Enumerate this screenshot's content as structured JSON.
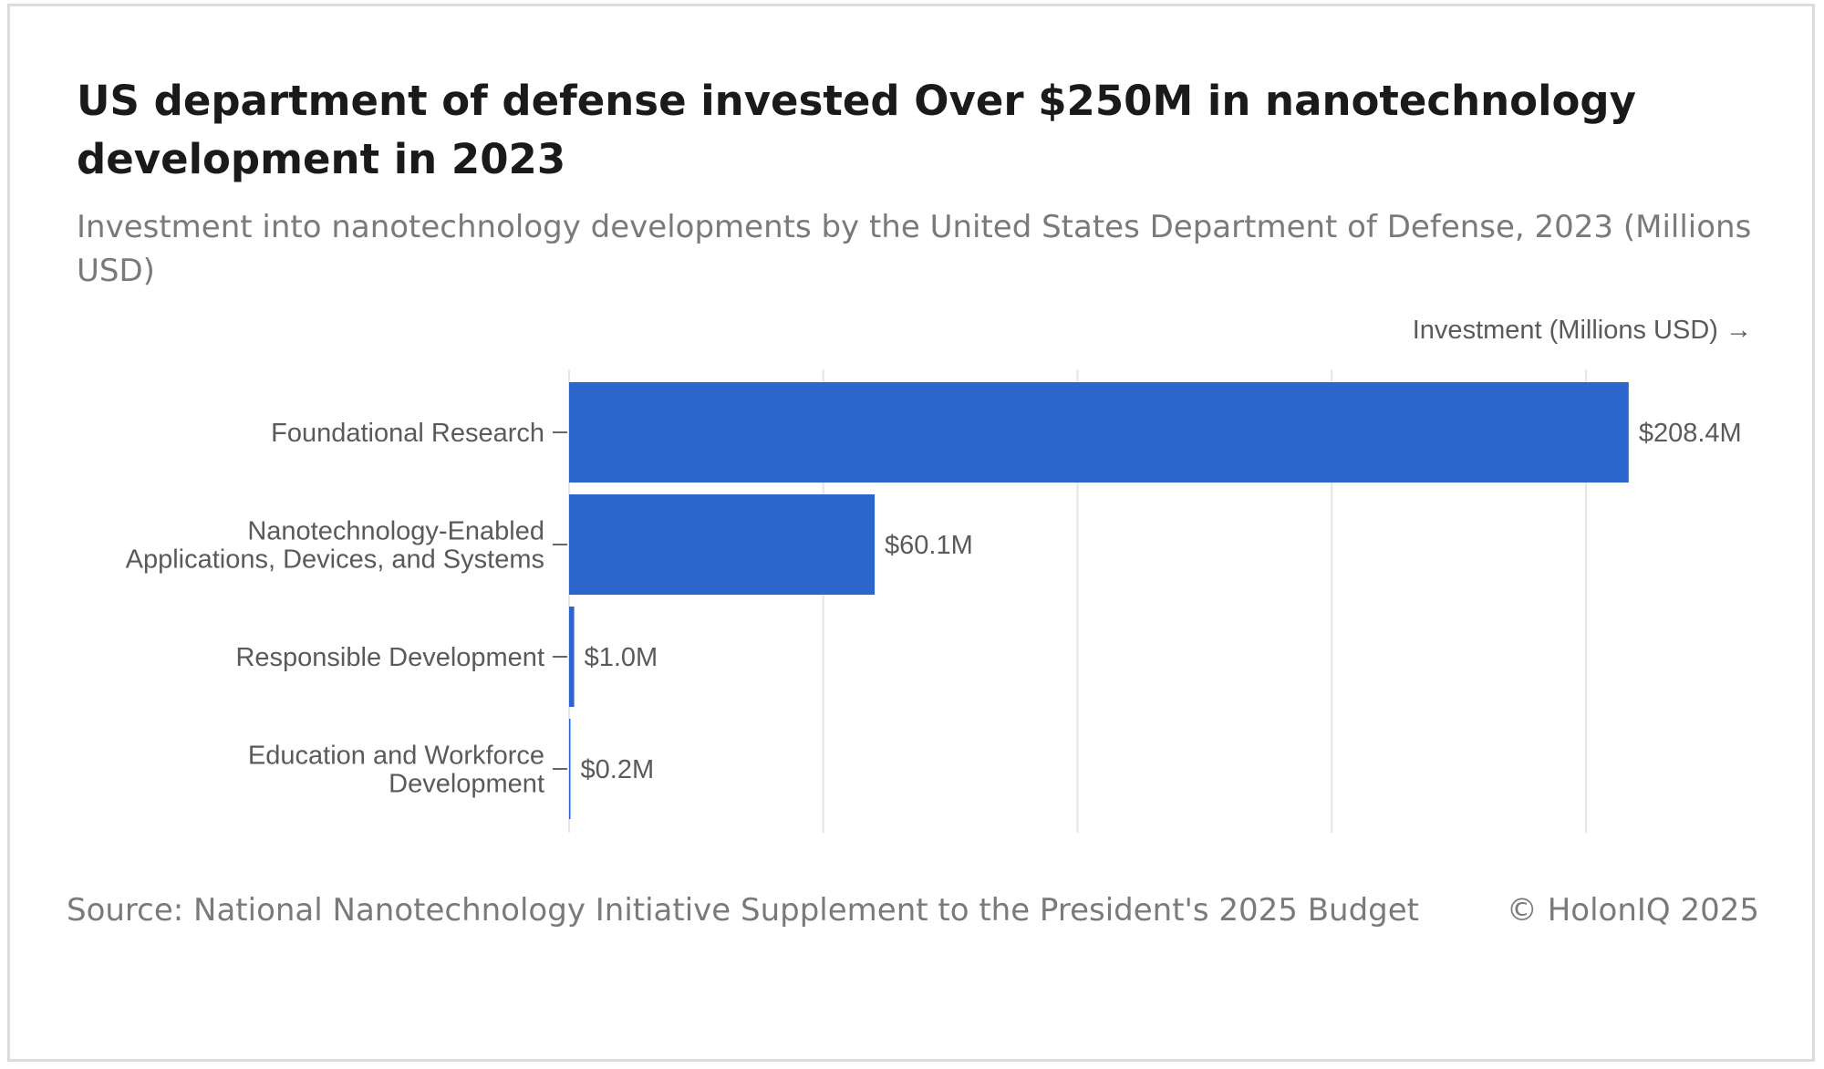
{
  "header": {
    "title": "US department of defense invested Over $250M in nanotechnology development in 2023",
    "subtitle": "Investment into nanotechnology developments by the United States Department of Defense, 2023 (Millions USD)"
  },
  "footer": {
    "source": "Source: National Nanotechnology Initiative Supplement to the President's 2025 Budget",
    "copyright": "© HolonIQ 2025"
  },
  "colors": {
    "bar": "#2b66cc",
    "grid": "#e6e6e6",
    "text": "#5a5a5a"
  },
  "chart_data": {
    "type": "bar",
    "orientation": "horizontal",
    "title": "US department of defense invested Over $250M in nanotechnology development in 2023",
    "subtitle": "Investment into nanotechnology developments by the United States Department of Defense, 2023 (Millions USD)",
    "xlabel": "Investment (Millions USD) →",
    "ylabel": "",
    "categories": [
      [
        "Foundational Research"
      ],
      [
        "Nanotechnology-Enabled",
        "Applications, Devices, and Systems"
      ],
      [
        "Responsible Development"
      ],
      [
        "Education and Workforce",
        "Development"
      ]
    ],
    "values": [
      208.4,
      60.1,
      1.0,
      0.2
    ],
    "data_labels": [
      "$208.4M",
      "$60.1M",
      "$1.0M",
      "$0.2M"
    ],
    "xlim": [
      0,
      250
    ],
    "x_gridlines": [
      0,
      50,
      100,
      150,
      200
    ],
    "grid": true,
    "legend": "none"
  }
}
